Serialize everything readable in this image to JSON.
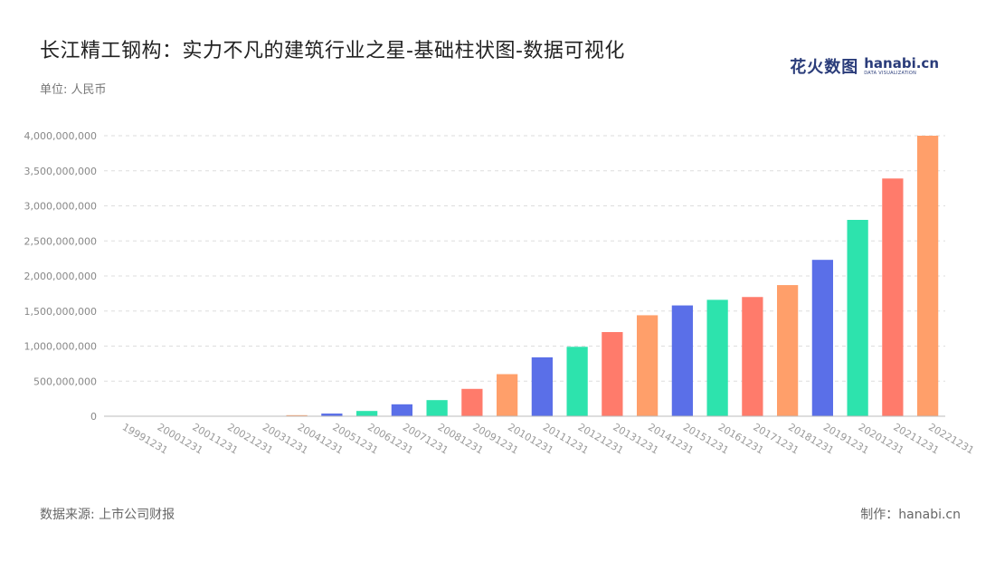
{
  "title": "长江精工钢构：实力不凡的建筑行业之星-基础柱状图-数据可视化",
  "unit": "单位: 人民币",
  "logo": {
    "cn": "花火数图",
    "en": "hanabi.cn",
    "sub": "DATA VISUALIZATION"
  },
  "footer": {
    "source": "数据来源: 上市公司财报",
    "maker": "制作：hanabi.cn"
  },
  "chart_data": {
    "type": "bar",
    "categories": [
      "19991231",
      "20001231",
      "20011231",
      "20021231",
      "20031231",
      "20041231",
      "20051231",
      "20061231",
      "20071231",
      "20081231",
      "20091231",
      "20101231",
      "20111231",
      "20121231",
      "20131231",
      "20141231",
      "20151231",
      "20161231",
      "20171231",
      "20181231",
      "20191231",
      "20201231",
      "20211231",
      "20221231"
    ],
    "values": [
      0,
      0,
      0,
      0,
      5000000,
      15000000,
      38000000,
      75000000,
      170000000,
      230000000,
      390000000,
      600000000,
      840000000,
      990000000,
      1200000000,
      1440000000,
      1580000000,
      1660000000,
      1700000000,
      1870000000,
      2230000000,
      2800000000,
      3390000000,
      4000000000
    ],
    "colors": [
      "#ff7b6b",
      "#ff9f6a",
      "#5a6fe8",
      "#2de3ad",
      "#ff7b6b",
      "#ff9f6a",
      "#5a6fe8",
      "#2de3ad",
      "#5a6fe8",
      "#2de3ad",
      "#ff7b6b",
      "#ff9f6a",
      "#5a6fe8",
      "#2de3ad",
      "#ff7b6b",
      "#ff9f6a",
      "#5a6fe8",
      "#2de3ad",
      "#ff7b6b",
      "#ff9f6a",
      "#5a6fe8",
      "#2de3ad",
      "#ff7b6b",
      "#ff9f6a"
    ],
    "yticks": [
      "0",
      "500,000,000",
      "1,000,000,000",
      "1,500,000,000",
      "2,000,000,000",
      "2,500,000,000",
      "3,000,000,000",
      "3,500,000,000",
      "4,000,000,000"
    ],
    "ylim": [
      0,
      4000000000
    ],
    "grid": true
  }
}
